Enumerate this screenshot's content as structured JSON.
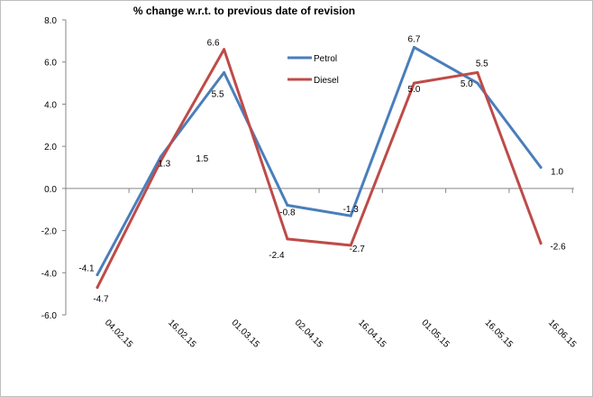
{
  "chart_data": {
    "type": "line",
    "title": "% change w.r.t. to previous date of revision",
    "categories": [
      "04.02.15",
      "16.02.15",
      "01.03.15",
      "02.04.15",
      "16.04.15",
      "01.05.15",
      "16.05.15",
      "16.06.15"
    ],
    "series": [
      {
        "name": "Petrol",
        "color": "#4a7ebb",
        "values": [
          -4.1,
          1.5,
          5.5,
          -0.8,
          -1.3,
          6.7,
          5.0,
          1.0
        ],
        "labels": [
          "-4.1",
          "1.5",
          "5.5",
          "-0.8",
          "-1.3",
          "6.7",
          "5.0",
          "1.0"
        ]
      },
      {
        "name": "Diesel",
        "color": "#be4b48",
        "values": [
          -4.7,
          1.3,
          6.6,
          -2.4,
          -2.7,
          5.0,
          5.5,
          -2.6
        ],
        "labels": [
          "-4.7",
          "1.3",
          "6.6",
          "-2.4",
          "-2.7",
          "5.0",
          "5.5",
          "-2.6"
        ]
      }
    ],
    "y_ticks": [
      "8.0",
      "6.0",
      "4.0",
      "2.0",
      "0.0",
      "-2.0",
      "-4.0",
      "-6.0"
    ],
    "ylim": [
      -6,
      8
    ],
    "grid": false,
    "legend_position": "top-center"
  }
}
